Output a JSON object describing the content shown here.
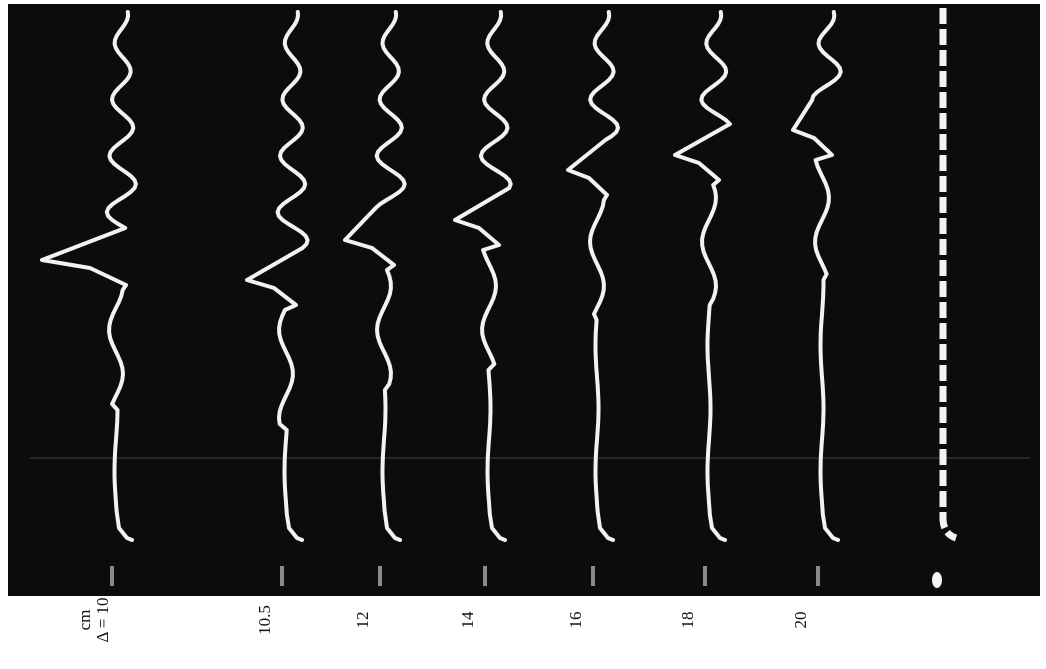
{
  "labels": {
    "unit": "cm",
    "first": "Δ = 10",
    "others": [
      "10.5",
      "12",
      "14",
      "16",
      "18",
      "20"
    ]
  }
}
